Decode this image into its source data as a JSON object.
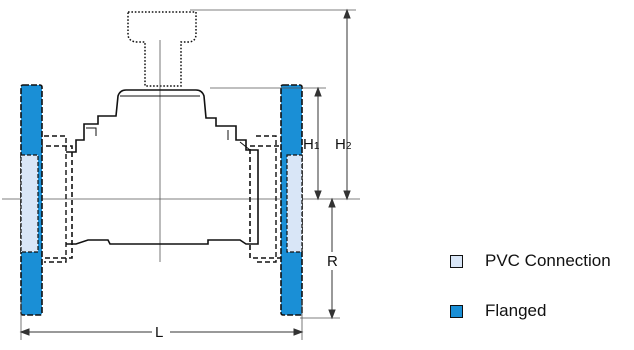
{
  "dimensions": {
    "h1": {
      "main": "H",
      "sub": "1"
    },
    "h2": {
      "main": "H",
      "sub": "2"
    },
    "r": "R",
    "l": "L"
  },
  "legend": [
    {
      "label": "PVC Connection",
      "color": "#d9e6f7"
    },
    {
      "label": "Flanged",
      "color": "#1a8fd6"
    }
  ],
  "colors": {
    "flange": "#1a8fd6",
    "pvc": "#d9e6f7",
    "outline": "#111111",
    "dimension_line": "#333333"
  }
}
